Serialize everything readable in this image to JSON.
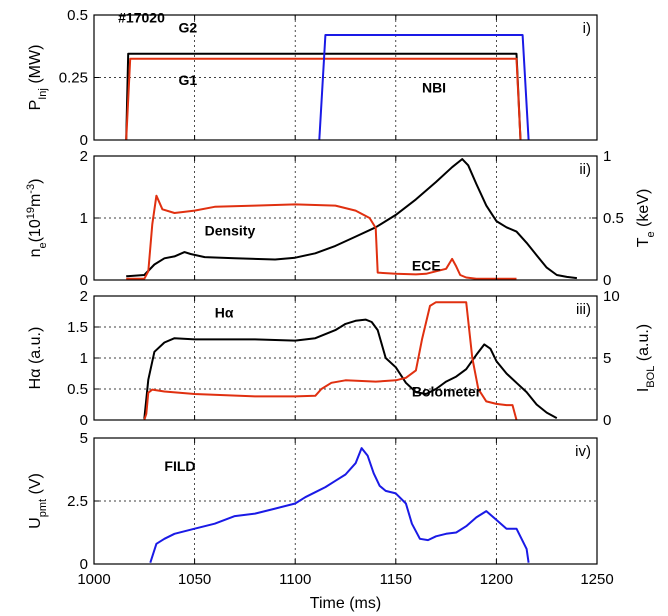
{
  "chart_data": {
    "type": "line",
    "shot_label": "#17020",
    "xlabel": "Time (ms)",
    "xlim": [
      1000,
      1250
    ],
    "xticks": [
      1000,
      1050,
      1100,
      1150,
      1200,
      1250
    ],
    "colors": {
      "black": "#000000",
      "red": "#e03010",
      "blue": "#1a1ae6"
    },
    "panels": [
      {
        "id": "i",
        "panel_label": "i)",
        "ylabel_parts": [
          "P",
          "Inj",
          " (MW)"
        ],
        "ylim": [
          0,
          0.5
        ],
        "yticks": [
          "0",
          "0.25",
          "0.5"
        ],
        "ytick_values": [
          0,
          0.25,
          0.5
        ],
        "annotations": [
          {
            "text": "#17020",
            "x": 1012,
            "y": 0.47,
            "color": "black"
          },
          {
            "text": "G2",
            "x": 1042,
            "y": 0.43,
            "color": "black"
          },
          {
            "text": "G1",
            "x": 1042,
            "y": 0.22,
            "color": "red"
          },
          {
            "text": "NBI",
            "x": 1163,
            "y": 0.19,
            "color": "blue"
          }
        ],
        "series": [
          {
            "color": "black",
            "x": [
              1016,
              1017,
              1210,
              1212
            ],
            "y": [
              0,
              0.345,
              0.345,
              0
            ]
          },
          {
            "color": "red",
            "x": [
              1016,
              1018,
              1210,
              1212
            ],
            "y": [
              0,
              0.325,
              0.325,
              0
            ]
          },
          {
            "color": "blue",
            "x": [
              1112,
              1115,
              1213,
              1216
            ],
            "y": [
              0,
              0.42,
              0.42,
              0
            ]
          }
        ]
      },
      {
        "id": "ii",
        "panel_label": "ii)",
        "ylabel_parts": [
          "n",
          "e",
          "(10",
          "19",
          "m",
          "-3",
          ")"
        ],
        "ylim": [
          0,
          2
        ],
        "yticks": [
          "0",
          "1",
          "2"
        ],
        "ytick_values": [
          0,
          1,
          2
        ],
        "y2label_parts": [
          "T",
          "e",
          " (keV)"
        ],
        "y2lim": [
          0,
          1
        ],
        "y2ticks": [
          "0",
          "0.5",
          "1"
        ],
        "y2tick_values": [
          0,
          0.5,
          1
        ],
        "annotations": [
          {
            "text": "Density",
            "x": 1055,
            "y": 0.72,
            "color": "black"
          },
          {
            "text": "ECE",
            "x": 1158,
            "y": 0.15,
            "color": "red"
          }
        ],
        "series": [
          {
            "color": "black",
            "axis": "left",
            "x": [
              1016,
              1025,
              1030,
              1035,
              1040,
              1045,
              1048,
              1055,
              1070,
              1090,
              1100,
              1110,
              1120,
              1130,
              1140,
              1150,
              1160,
              1170,
              1178,
              1183,
              1186,
              1190,
              1195,
              1200,
              1205,
              1210,
              1215,
              1220,
              1225,
              1230,
              1235,
              1240
            ],
            "y": [
              0.06,
              0.08,
              0.25,
              0.35,
              0.38,
              0.45,
              0.42,
              0.37,
              0.35,
              0.33,
              0.36,
              0.43,
              0.55,
              0.7,
              0.85,
              1.05,
              1.3,
              1.58,
              1.82,
              1.95,
              1.85,
              1.55,
              1.2,
              0.95,
              0.85,
              0.78,
              0.6,
              0.4,
              0.2,
              0.08,
              0.05,
              0.03
            ]
          },
          {
            "color": "red",
            "axis": "right",
            "x": [
              1016,
              1025,
              1027,
              1029,
              1031,
              1034,
              1040,
              1050,
              1060,
              1080,
              1100,
              1120,
              1130,
              1137,
              1140,
              1141,
              1150,
              1160,
              1165,
              1170,
              1175,
              1178,
              1180,
              1182,
              1185,
              1190,
              1200,
              1210
            ],
            "y": [
              0.01,
              0.01,
              0.07,
              0.45,
              0.68,
              0.57,
              0.54,
              0.56,
              0.59,
              0.6,
              0.61,
              0.6,
              0.56,
              0.5,
              0.42,
              0.06,
              0.05,
              0.045,
              0.05,
              0.07,
              0.09,
              0.17,
              0.11,
              0.04,
              0.02,
              0.01,
              0.01,
              0.01
            ]
          }
        ]
      },
      {
        "id": "iii",
        "panel_label": "iii)",
        "ylabel_parts": [
          "H",
          "α",
          " (a.u.)"
        ],
        "ylim": [
          0,
          2
        ],
        "yticks": [
          "0",
          "0.5",
          "1",
          "1.5",
          "2"
        ],
        "ytick_values": [
          0,
          0.5,
          1,
          1.5,
          2
        ],
        "y2label_parts": [
          "I",
          "BOL",
          " (a.u.)"
        ],
        "y2lim": [
          0,
          10
        ],
        "y2ticks": [
          "0",
          "5",
          "10"
        ],
        "y2tick_values": [
          0,
          5,
          10
        ],
        "annotations": [
          {
            "text": "Hα",
            "x": 1060,
            "y": 1.65,
            "color": "black"
          },
          {
            "text": "Bolometer",
            "x": 1158,
            "y": 0.38,
            "color": "red"
          }
        ],
        "series": [
          {
            "color": "black",
            "axis": "left",
            "x": [
              1025,
              1027,
              1030,
              1035,
              1040,
              1050,
              1060,
              1080,
              1100,
              1110,
              1120,
              1125,
              1130,
              1135,
              1138,
              1141,
              1145,
              1150,
              1155,
              1160,
              1165,
              1170,
              1175,
              1180,
              1185,
              1190,
              1194,
              1197,
              1200,
              1205,
              1210,
              1215,
              1220,
              1225,
              1230
            ],
            "y": [
              0.02,
              0.65,
              1.1,
              1.25,
              1.32,
              1.3,
              1.3,
              1.3,
              1.28,
              1.32,
              1.45,
              1.55,
              1.6,
              1.62,
              1.58,
              1.45,
              1.0,
              0.85,
              0.6,
              0.45,
              0.42,
              0.5,
              0.62,
              0.7,
              0.82,
              1.05,
              1.22,
              1.15,
              0.95,
              0.75,
              0.6,
              0.45,
              0.25,
              0.12,
              0.03
            ]
          },
          {
            "color": "red",
            "axis": "right",
            "x": [
              1025,
              1026,
              1027,
              1029,
              1035,
              1050,
              1080,
              1100,
              1110,
              1113,
              1118,
              1125,
              1140,
              1150,
              1155,
              1160,
              1163,
              1167,
              1170,
              1175,
              1185,
              1188,
              1191,
              1195,
              1200,
              1205,
              1208,
              1210
            ],
            "y": [
              0,
              0.5,
              2.2,
              2.45,
              2.3,
              2.1,
              1.9,
              1.9,
              1.95,
              2.5,
              3.0,
              3.2,
              3.1,
              3.2,
              3.4,
              4.0,
              6.5,
              9.2,
              9.5,
              9.5,
              9.5,
              5.0,
              2.5,
              1.5,
              1.3,
              1.2,
              1.2,
              0
            ]
          }
        ]
      },
      {
        "id": "iv",
        "panel_label": "iv)",
        "ylabel_parts": [
          "U",
          "pmt",
          " (V)"
        ],
        "ylim": [
          0,
          5
        ],
        "yticks": [
          "0",
          "2.5",
          "5"
        ],
        "ytick_values": [
          0,
          2.5,
          5
        ],
        "annotations": [
          {
            "text": "FILD",
            "x": 1035,
            "y": 3.7,
            "color": "blue"
          }
        ],
        "series": [
          {
            "color": "blue",
            "axis": "left",
            "x": [
              1028,
              1031,
              1035,
              1040,
              1050,
              1060,
              1070,
              1080,
              1090,
              1100,
              1105,
              1110,
              1115,
              1120,
              1125,
              1130,
              1133,
              1136,
              1139,
              1142,
              1145,
              1150,
              1155,
              1158,
              1162,
              1166,
              1170,
              1175,
              1180,
              1185,
              1190,
              1195,
              1200,
              1205,
              1210,
              1215,
              1216
            ],
            "y": [
              0.05,
              0.8,
              1.0,
              1.2,
              1.4,
              1.6,
              1.9,
              2.0,
              2.2,
              2.4,
              2.65,
              2.85,
              3.05,
              3.3,
              3.55,
              4.0,
              4.6,
              4.3,
              3.6,
              3.1,
              2.9,
              2.8,
              2.4,
              1.6,
              1.0,
              0.95,
              1.1,
              1.2,
              1.25,
              1.5,
              1.85,
              2.1,
              1.75,
              1.4,
              1.4,
              0.6,
              0.05
            ]
          }
        ]
      }
    ]
  }
}
